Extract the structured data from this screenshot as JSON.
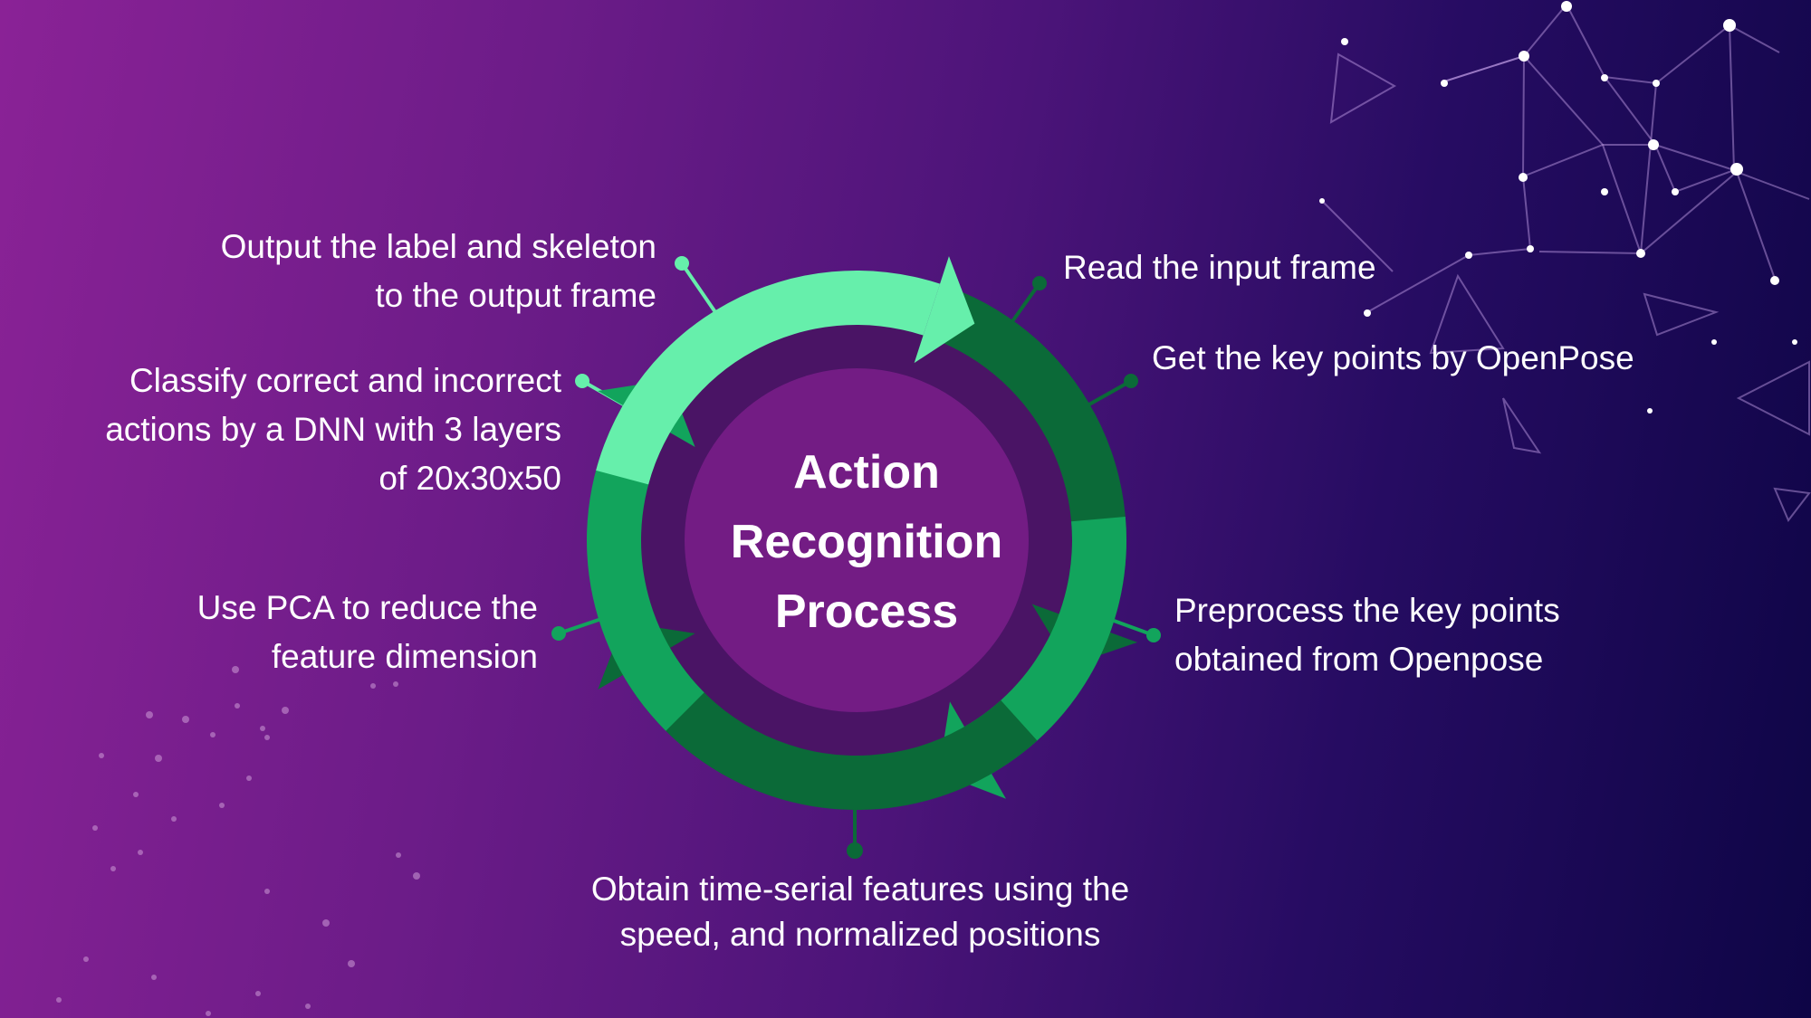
{
  "diagram": {
    "title_lines": [
      "Action",
      "Recognition",
      "Process"
    ],
    "steps": [
      {
        "lines": [
          "Read the input frame"
        ]
      },
      {
        "lines": [
          "Get the key points by OpenPose"
        ]
      },
      {
        "lines": [
          "Preprocess the key points",
          "obtained from Openpose"
        ]
      },
      {
        "lines": [
          "Obtain time-serial features using the",
          "speed, and normalized positions"
        ]
      },
      {
        "lines": [
          "Use PCA to reduce the",
          "feature dimension"
        ]
      },
      {
        "lines": [
          "Classify correct and incorrect",
          "actions by a DNN with 3 layers",
          "of 20x30x50"
        ]
      },
      {
        "lines": [
          "Output the label and skeleton",
          "to the output frame"
        ]
      }
    ]
  },
  "colors": {
    "arrow_light": "#66efab",
    "arrow_mid": "#12a45c",
    "arrow_dark": "#0b6a38",
    "inner_ring": "#4a1465",
    "inner_disc": "#731c84"
  }
}
